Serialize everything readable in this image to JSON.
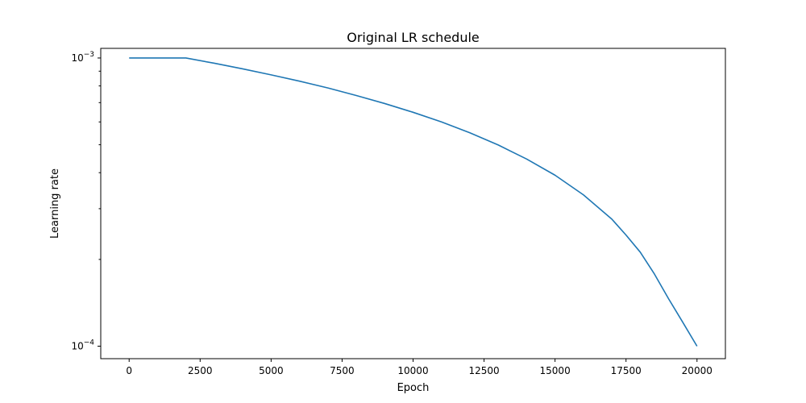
{
  "chart_data": {
    "type": "line",
    "title": "Original LR schedule",
    "xlabel": "Epoch",
    "ylabel": "Learning rate",
    "xlim": [
      -1000,
      21000
    ],
    "ylim": [
      9.05e-05,
      0.00108
    ],
    "yscale": "log",
    "grid": false,
    "x_ticks": [
      0,
      2500,
      5000,
      7500,
      10000,
      12500,
      15000,
      17500,
      20000
    ],
    "y_major_ticks": [
      {
        "value": 0.0001,
        "base": "10",
        "exponent": "−4"
      },
      {
        "value": 0.001,
        "base": "10",
        "exponent": "−3"
      }
    ],
    "y_minor_ticks": [
      0.0002,
      0.0003,
      0.0004,
      0.0005,
      0.0006,
      0.0007,
      0.0008,
      0.0009
    ],
    "colors": {
      "line": "#1f77b4",
      "axes": "#000000"
    },
    "series": [
      {
        "x": [
          0,
          500,
          1000,
          1500,
          2000,
          3000,
          4000,
          5000,
          6000,
          7000,
          8000,
          9000,
          10000,
          11000,
          12000,
          13000,
          14000,
          15000,
          16000,
          17000,
          17500,
          18000,
          18500,
          19000,
          19500,
          20000
        ],
        "y": [
          0.001,
          0.001,
          0.001,
          0.001,
          0.001,
          0.000959,
          0.000917,
          0.000874,
          0.000831,
          0.000787,
          0.000741,
          0.000695,
          0.000648,
          0.0006,
          0.00055,
          0.000499,
          0.000446,
          0.000392,
          0.000335,
          0.000276,
          0.000243,
          0.000212,
          0.000178,
          0.000146,
          0.000121,
          0.0001
        ]
      }
    ]
  }
}
